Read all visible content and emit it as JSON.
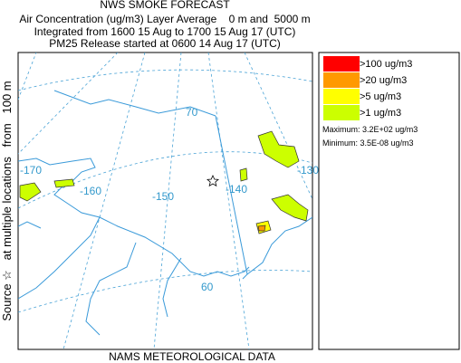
{
  "header": {
    "title": "NWS SMOKE FORECAST",
    "lines": [
      "Air Concentration (ug/m3) Layer Average    0 m and  5000 m",
      "Integrated from 1600 15 Aug to 1700 15 Aug 17 (UTC)",
      "PM25 Release started at 0600 14 Aug 17 (UTC)"
    ]
  },
  "side_label": "Source ☆   at multiple locations   from   100 m",
  "footer": "NAMS METEOROLOGICAL DATA",
  "legend": {
    "items": [
      {
        "label": ">100 ug/m3",
        "color": "#ff0000"
      },
      {
        "label": ">20 ug/m3",
        "color": "#ff9900"
      },
      {
        "label": ">5 ug/m3",
        "color": "#ffff00"
      },
      {
        "label": ">1 ug/m3",
        "color": "#ccff00"
      }
    ],
    "maximum": "Maximum: 3.2E+02 ug/m3",
    "minimum": "Minimum: 3.5E-08 ug/m3"
  },
  "map": {
    "grid_labels": [
      "-170",
      "-160",
      "-150",
      "-140",
      "-130",
      "70",
      "60"
    ]
  }
}
